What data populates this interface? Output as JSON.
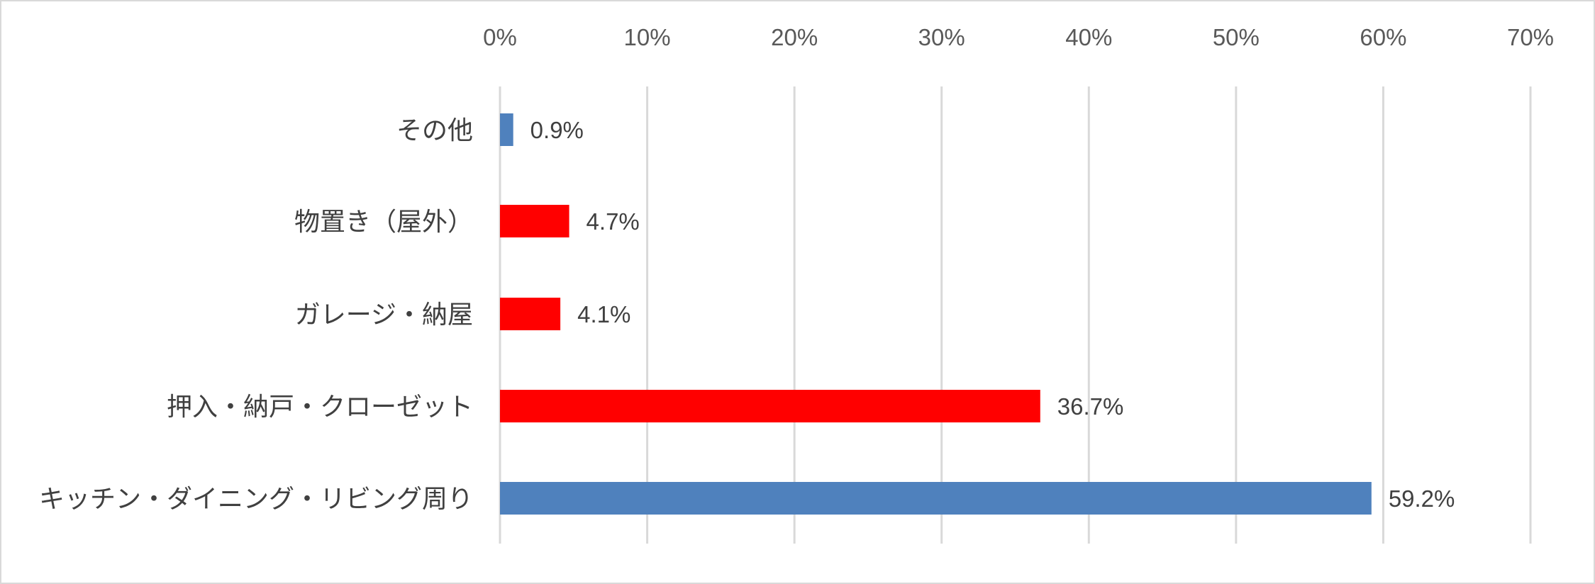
{
  "chart_data": {
    "type": "bar",
    "orientation": "horizontal",
    "categories": [
      "その他",
      "物置き（屋外）",
      "ガレージ・納屋",
      "押入・納戸・クローゼット",
      "キッチン・ダイニング・リビング周り"
    ],
    "values": [
      0.9,
      4.7,
      4.1,
      36.7,
      59.2
    ],
    "data_labels": [
      "0.9%",
      "4.7%",
      "4.1%",
      "36.7%",
      "59.2%"
    ],
    "bar_colors": [
      "#4f81bd",
      "#ff0000",
      "#ff0000",
      "#ff0000",
      "#4f81bd"
    ],
    "xlim": [
      0,
      70
    ],
    "x_ticks": [
      0,
      10,
      20,
      30,
      40,
      50,
      60,
      70
    ],
    "x_tick_labels": [
      "0%",
      "10%",
      "20%",
      "30%",
      "40%",
      "50%",
      "60%",
      "70%"
    ],
    "x_axis_position": "top",
    "grid": true,
    "legend": "none",
    "title": "",
    "xlabel": "",
    "ylabel": ""
  }
}
